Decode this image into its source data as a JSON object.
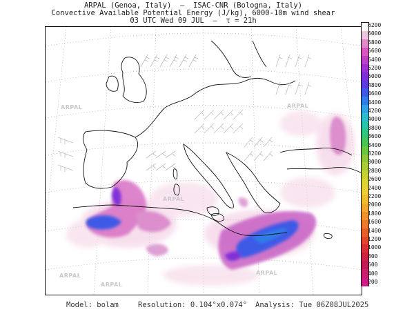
{
  "header": {
    "line1": "ARPAL (Genoa, Italy)  —  ISAC-CNR (Bologna, Italy)",
    "line2": "Convective Available Potential Energy (J/kg), 6000-10m wind shear",
    "line3": "03 UTC Wed 09 JUL  —  τ = 21h"
  },
  "colorbar": {
    "labels": [
      "6200",
      "6000",
      "5800",
      "5600",
      "5400",
      "5200",
      "5000",
      "4800",
      "4600",
      "4400",
      "4200",
      "4000",
      "3800",
      "3600",
      "3400",
      "3200",
      "3000",
      "2800",
      "2600",
      "2400",
      "2200",
      "2000",
      "1800",
      "1600",
      "1400",
      "1200",
      "1000",
      "800",
      "600",
      "400",
      "200"
    ],
    "colors": [
      "#ffffff",
      "#e9c6dd",
      "#e089c8",
      "#d855c0",
      "#c040c4",
      "#a030d0",
      "#8030d8",
      "#5a3ce0",
      "#3c5ae6",
      "#2e7ee8",
      "#32a2e4",
      "#2cbccc",
      "#26c4a6",
      "#30c47c",
      "#48c454",
      "#6ac640",
      "#8ec83a",
      "#aacc36",
      "#c4d034",
      "#dcd232",
      "#ead032",
      "#eebe30",
      "#f0a82e",
      "#f0922c",
      "#ec7a2c",
      "#e6602c",
      "#e0482e",
      "#d83034",
      "#ce2242",
      "#c21c56",
      "#c8206e",
      "#cc1e82"
    ]
  },
  "watermark": "ARPAL",
  "footer": {
    "model": "Model: bolam",
    "resolution": "Resolution: 0.104°x0.074°",
    "analysis": "Analysis: Tue 06Z08JUL2025"
  }
}
